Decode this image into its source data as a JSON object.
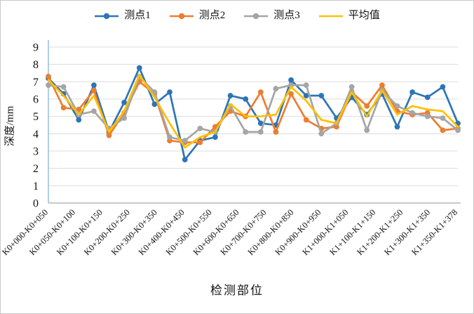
{
  "figure": {
    "x_axis_title": "检测部位",
    "y_axis_title": "深度/mm"
  },
  "chart_data": {
    "type": "line",
    "title": "",
    "xlabel": "检测部位",
    "ylabel": "深度/mm",
    "ylim": [
      0,
      9
    ],
    "y_ticks": [
      0,
      1,
      2,
      3,
      4,
      5,
      6,
      7,
      8,
      9
    ],
    "grid": true,
    "legend_position": "top",
    "n_points": 28,
    "x_tick_labels": [
      "K0+000-K0+050",
      "K0+050-K0+100",
      "K0+100-K0+150",
      "K0+200-K0+250",
      "K0+300-K0+350",
      "K0+400-K0+450",
      "K0+500-K0+550",
      "K0+600-K0+650",
      "K0+700-K0+750",
      "K0+800-K0+850",
      "K0+900-K0+950",
      "K1+000-K1+050",
      "K1+100-K1+150",
      "K1+200-K1+250",
      "K1+300-K1+350",
      "K1+350-K1+378"
    ],
    "series": [
      {
        "name": "测点1",
        "color": "#2E75B6",
        "marker": "circle",
        "values": [
          7.2,
          6.3,
          4.8,
          6.8,
          4.1,
          5.8,
          7.8,
          5.7,
          6.4,
          2.5,
          3.6,
          3.8,
          6.2,
          6.0,
          4.6,
          4.5,
          7.1,
          6.2,
          6.2,
          4.9,
          6.1,
          5.1,
          6.3,
          4.4,
          6.4,
          6.1,
          6.7,
          4.6
        ]
      },
      {
        "name": "测点2",
        "color": "#ED7D31",
        "marker": "circle",
        "values": [
          7.3,
          5.5,
          5.4,
          6.5,
          3.9,
          5.2,
          7.0,
          6.3,
          3.6,
          3.5,
          3.5,
          4.4,
          5.3,
          5.0,
          6.4,
          4.1,
          6.3,
          4.8,
          4.3,
          4.4,
          6.4,
          5.6,
          6.8,
          5.3,
          5.1,
          5.2,
          4.2,
          4.3
        ]
      },
      {
        "name": "测点3",
        "color": "#A5A5A5",
        "marker": "circle",
        "values": [
          6.8,
          6.7,
          5.1,
          5.3,
          4.3,
          4.9,
          7.3,
          6.4,
          3.8,
          3.6,
          4.3,
          4.1,
          5.6,
          4.1,
          4.1,
          6.6,
          6.8,
          6.8,
          4.0,
          4.6,
          6.7,
          4.2,
          6.5,
          5.6,
          5.2,
          5.0,
          4.9,
          4.2
        ]
      },
      {
        "name": "平均值",
        "color": "#FFC000",
        "marker": "none",
        "values": [
          7.1,
          6.2,
          5.1,
          6.2,
          4.1,
          5.3,
          7.4,
          6.1,
          4.6,
          3.2,
          3.8,
          4.1,
          5.7,
          5.0,
          5.0,
          5.1,
          6.7,
          5.9,
          4.8,
          4.6,
          6.4,
          5.0,
          6.5,
          5.1,
          5.6,
          5.4,
          5.3,
          4.4
        ]
      }
    ],
    "colors": {
      "gridline": "#DCDCDC",
      "y_axis_line": "#9DC3E6",
      "x_axis_line": "#A6A6A6"
    }
  }
}
